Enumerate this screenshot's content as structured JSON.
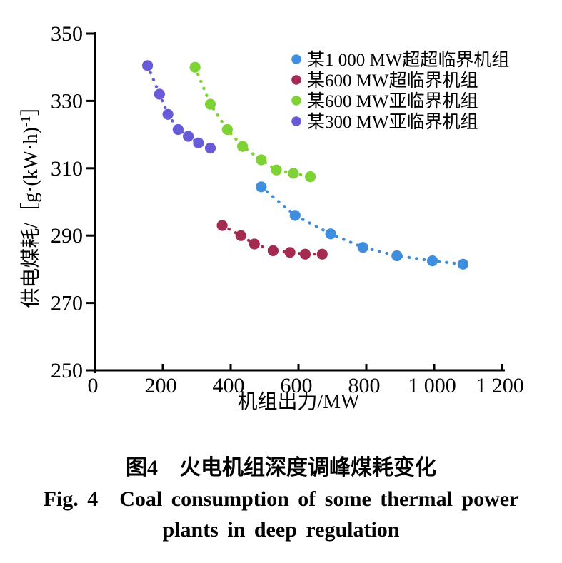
{
  "figure_caption": {
    "line1_zh": "图4　火电机组深度调峰煤耗变化",
    "line2_en": "Fig. 4 Coal consumption of some thermal power",
    "line3_en": "plants in deep regulation"
  },
  "chart_data": {
    "type": "scatter",
    "title": "",
    "xlabel": "机组出力/MW",
    "ylabel": "供电煤耗/［g·(kW·h)⁻¹］",
    "ylabel_parts": {
      "main": "供电煤耗/［g·(kW·h)",
      "sup": "-1",
      "close": "］"
    },
    "xlim": [
      0,
      1200
    ],
    "ylim": [
      250,
      350
    ],
    "xticks": [
      0,
      200,
      400,
      600,
      800,
      1000,
      1200
    ],
    "xtick_labels": [
      "0",
      "200",
      "400",
      "600",
      "800",
      "1 000",
      "1 200"
    ],
    "yticks": [
      250,
      270,
      290,
      310,
      330,
      350
    ],
    "ytick_labels": [
      "250",
      "270",
      "290",
      "310",
      "330",
      "350"
    ],
    "grid": false,
    "legend_position": "upper-right-inside",
    "marker_style": "filled circle with dotted connecting line",
    "axis_color": "#000000",
    "series": [
      {
        "name": "某1 000 MW超超临界机组",
        "color": "#3F8EDE",
        "points": [
          [
            490,
            304.5
          ],
          [
            590,
            296
          ],
          [
            695,
            290.5
          ],
          [
            790,
            286.5
          ],
          [
            890,
            284
          ],
          [
            995,
            282.5
          ],
          [
            1085,
            281.5
          ]
        ]
      },
      {
        "name": "某600 MW超临界机组",
        "color": "#A42A50",
        "points": [
          [
            375,
            293
          ],
          [
            430,
            290
          ],
          [
            470,
            287.5
          ],
          [
            525,
            285.5
          ],
          [
            575,
            285
          ],
          [
            620,
            284.5
          ],
          [
            670,
            284.5
          ]
        ]
      },
      {
        "name": "某600 MW亚临界机组",
        "color": "#7FD233",
        "points": [
          [
            295,
            340
          ],
          [
            340,
            329
          ],
          [
            390,
            321.5
          ],
          [
            435,
            316.5
          ],
          [
            490,
            312.5
          ],
          [
            535,
            309.5
          ],
          [
            585,
            308.5
          ],
          [
            635,
            307.5
          ]
        ]
      },
      {
        "name": "某300 MW亚临界机组",
        "color": "#675BD8",
        "points": [
          [
            155,
            340.5
          ],
          [
            190,
            332
          ],
          [
            215,
            326
          ],
          [
            245,
            321.5
          ],
          [
            275,
            319.5
          ],
          [
            305,
            317.5
          ],
          [
            340,
            316
          ]
        ]
      }
    ]
  }
}
